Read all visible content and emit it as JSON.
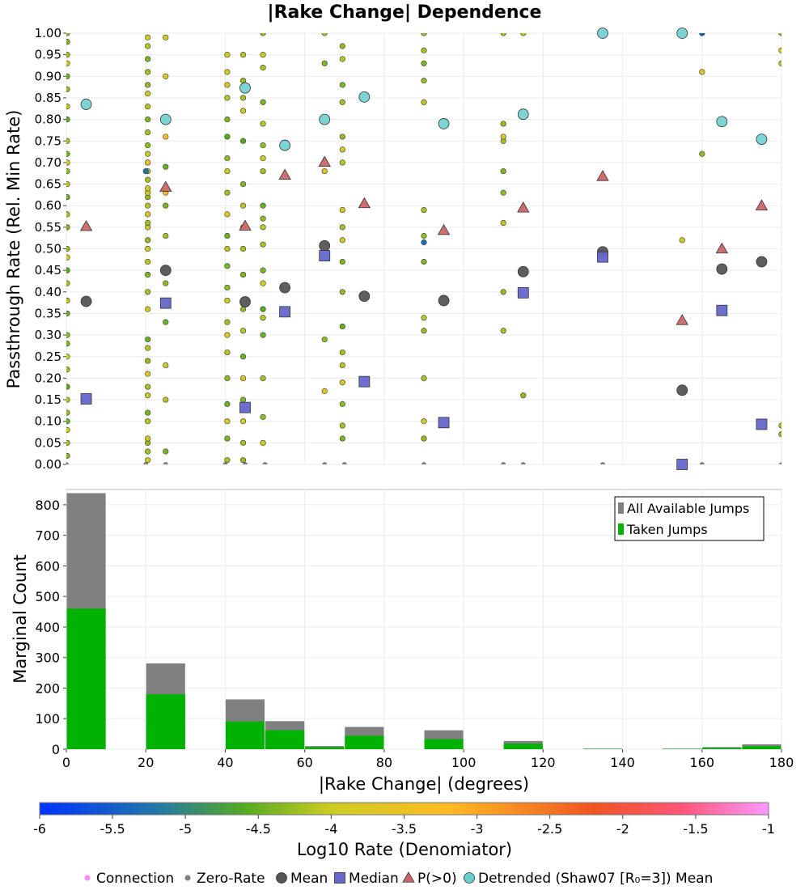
{
  "chart_data": [
    {
      "type": "scatter",
      "title": "|Rake Change| Dependence",
      "ylabel": "Passthrough Rate (Rel. Min Rate)",
      "xlim": [
        0,
        180
      ],
      "ylim": [
        0,
        1
      ],
      "yticks": [
        "0.00",
        "0.05",
        "0.10",
        "0.15",
        "0.20",
        "0.25",
        "0.30",
        "0.35",
        "0.40",
        "0.45",
        "0.50",
        "0.55",
        "0.60",
        "0.65",
        "0.70",
        "0.75",
        "0.80",
        "0.85",
        "0.90",
        "0.95",
        "1.00"
      ],
      "grid": true,
      "series": [
        {
          "name": "Mean",
          "color": "#555555",
          "points": [
            [
              5,
              0.378
            ],
            [
              25,
              0.45
            ],
            [
              45,
              0.377
            ],
            [
              55,
              0.41
            ],
            [
              65,
              0.507
            ],
            [
              75,
              0.39
            ],
            [
              95,
              0.38
            ],
            [
              115,
              0.447
            ],
            [
              135,
              0.493
            ],
            [
              155,
              0.172
            ],
            [
              165,
              0.453
            ],
            [
              175,
              0.47
            ]
          ]
        },
        {
          "name": "Median",
          "color": "#6666cc",
          "points": [
            [
              5,
              0.152
            ],
            [
              25,
              0.374
            ],
            [
              45,
              0.132
            ],
            [
              55,
              0.354
            ],
            [
              65,
              0.484
            ],
            [
              75,
              0.192
            ],
            [
              95,
              0.097
            ],
            [
              115,
              0.398
            ],
            [
              135,
              0.481
            ],
            [
              155,
              0.0
            ],
            [
              165,
              0.357
            ],
            [
              175,
              0.093
            ]
          ]
        },
        {
          "name": "P(>0)",
          "color": "#cc6666",
          "points": [
            [
              5,
              0.552
            ],
            [
              25,
              0.643
            ],
            [
              45,
              0.553
            ],
            [
              55,
              0.671
            ],
            [
              65,
              0.701
            ],
            [
              75,
              0.605
            ],
            [
              95,
              0.543
            ],
            [
              115,
              0.595
            ],
            [
              135,
              0.668
            ],
            [
              155,
              0.334
            ],
            [
              165,
              0.5
            ],
            [
              175,
              0.6
            ]
          ]
        },
        {
          "name": "Detrended (Shaw07 [R₀=3]) Mean",
          "color": "#66cccc",
          "points": [
            [
              5,
              0.835
            ],
            [
              25,
              0.8
            ],
            [
              45,
              0.873
            ],
            [
              55,
              0.74
            ],
            [
              65,
              0.8
            ],
            [
              75,
              0.852
            ],
            [
              95,
              0.79
            ],
            [
              115,
              0.812
            ],
            [
              135,
              1.0
            ],
            [
              155,
              1.0
            ],
            [
              165,
              0.795
            ],
            [
              175,
              0.754
            ]
          ]
        }
      ],
      "connections": {
        "name": "Connection",
        "colorbar_field": "Log10 Rate (Denomiator)",
        "columns": [
          {
            "x": 0.2,
            "y": [
              0.02,
              0.05,
              0.08,
              0.1,
              0.12,
              0.15,
              0.18,
              0.22,
              0.25,
              0.28,
              0.3,
              0.35,
              0.38,
              0.42,
              0.45,
              0.48,
              0.5,
              0.55,
              0.58,
              0.62,
              0.65,
              0.68,
              0.7,
              0.72,
              0.75,
              0.8,
              0.83,
              0.87,
              0.9,
              0.93,
              0.95,
              0.98,
              1.0
            ],
            "log10_rate": [
              -4.4,
              -4.2,
              -4.0,
              -4.5,
              -4.3,
              -4.1,
              -4.6,
              -4.2,
              -4.0,
              -4.4,
              -4.3,
              -4.5,
              -4.1,
              -4.2,
              -4.6,
              -4.0,
              -4.3,
              -4.4,
              -4.2,
              -4.5,
              -4.1,
              -4.3,
              -4.0,
              -4.4,
              -4.2,
              -4.6,
              -4.1,
              -4.3,
              -4.5,
              -4.0,
              -4.2,
              -4.4,
              -4.3
            ]
          },
          {
            "x": 20.5,
            "y": [
              0.01,
              0.03,
              0.05,
              0.06,
              0.1,
              0.12,
              0.16,
              0.18,
              0.21,
              0.24,
              0.27,
              0.29,
              0.36,
              0.4,
              0.44,
              0.47,
              0.5,
              0.52,
              0.55,
              0.56,
              0.58,
              0.6,
              0.62,
              0.63,
              0.64,
              0.66,
              0.68,
              0.7,
              0.72,
              0.74,
              0.77,
              0.8,
              0.83,
              0.86,
              0.88,
              0.91,
              0.94,
              0.97,
              0.99
            ],
            "log10_rate": [
              -4.0,
              -4.2,
              -4.3,
              -3.9,
              -4.1,
              -4.4,
              -4.0,
              -4.2,
              -3.8,
              -4.3,
              -4.1,
              -4.5,
              -4.0,
              -4.2,
              -4.4,
              -4.1,
              -3.9,
              -4.3,
              -4.0,
              -4.2,
              -3.8,
              -4.1,
              -4.3,
              -4.0,
              -3.9,
              -4.2,
              -4.1,
              -3.6,
              -4.0,
              -4.3,
              -4.2,
              -4.4,
              -4.1,
              -4.0,
              -4.3,
              -4.2,
              -4.4,
              -4.1,
              -4.0
            ]
          },
          {
            "x": 20.0,
            "y": [
              0.68
            ],
            "log10_rate": [
              -5.2
            ]
          },
          {
            "x": 25.0,
            "y": [
              0.03,
              0.15,
              0.23,
              0.33,
              0.42,
              0.53,
              0.6,
              0.63,
              0.69,
              0.76,
              0.9,
              0.99
            ],
            "log10_rate": [
              -4.4,
              -4.1,
              -4.0,
              -4.5,
              -4.3,
              -4.2,
              -4.4,
              -3.3,
              -4.5,
              -3.2,
              -3.8,
              -3.9
            ]
          },
          {
            "x": 40.5,
            "y": [
              0.01,
              0.06,
              0.1,
              0.14,
              0.2,
              0.26,
              0.3,
              0.33,
              0.38,
              0.41,
              0.46,
              0.5,
              0.53,
              0.58,
              0.63,
              0.68,
              0.71,
              0.76,
              0.8,
              0.85,
              0.88,
              0.91,
              0.95
            ],
            "log10_rate": [
              -4.2,
              -4.4,
              -4.0,
              -4.5,
              -4.3,
              -4.1,
              -3.8,
              -4.2,
              -4.0,
              -4.3,
              -4.4,
              -4.1,
              -4.5,
              -3.7,
              -4.2,
              -4.0,
              -4.3,
              -4.6,
              -4.4,
              -4.1,
              -3.9,
              -4.0,
              -3.9
            ]
          },
          {
            "x": 44.5,
            "y": [
              0.01,
              0.05,
              0.1,
              0.15,
              0.2,
              0.25,
              0.31,
              0.36,
              0.44,
              0.5,
              0.55,
              0.6,
              0.65,
              0.75,
              0.82,
              0.85,
              0.89,
              0.95
            ],
            "log10_rate": [
              -4.3,
              -4.2,
              -4.0,
              -4.4,
              -3.8,
              -4.5,
              -4.1,
              -4.3,
              -4.4,
              -4.2,
              -4.0,
              -4.1,
              -4.4,
              -4.6,
              -4.0,
              -4.2,
              -4.3,
              -4.1
            ]
          },
          {
            "x": 49.5,
            "y": [
              0.05,
              0.11,
              0.2,
              0.3,
              0.34,
              0.36,
              0.42,
              0.45,
              0.51,
              0.55,
              0.57,
              0.6,
              0.68,
              0.71,
              0.74,
              0.79,
              0.84,
              0.92,
              0.95,
              1.0
            ],
            "log10_rate": [
              -4.0,
              -4.3,
              -4.2,
              -4.5,
              -4.1,
              -4.6,
              -4.0,
              -4.4,
              -4.2,
              -4.1,
              -4.3,
              -4.5,
              -4.2,
              -4.0,
              -4.3,
              -4.1,
              -4.4,
              -4.2,
              -4.0,
              -4.3
            ]
          },
          {
            "x": 65.0,
            "y": [
              0.17,
              0.29,
              0.68,
              0.93,
              1.0
            ],
            "log10_rate": [
              -3.7,
              -4.3,
              -3.7,
              -4.4,
              -4.2
            ]
          },
          {
            "x": 69.5,
            "y": [
              0.06,
              0.09,
              0.14,
              0.19,
              0.23,
              0.26,
              0.32,
              0.4,
              0.47,
              0.52,
              0.55,
              0.59,
              0.7,
              0.73,
              0.76,
              0.84,
              0.88,
              0.94,
              0.97
            ],
            "log10_rate": [
              -4.4,
              -4.2,
              -4.3,
              -4.0,
              -4.1,
              -4.2,
              -4.5,
              -4.3,
              -4.4,
              -4.0,
              -4.2,
              -3.8,
              -4.1,
              -4.0,
              -4.3,
              -4.2,
              -4.4,
              -4.1,
              -4.3
            ]
          },
          {
            "x": 90.0,
            "y": [
              0.06,
              0.1,
              0.2,
              0.31,
              0.34,
              0.47,
              0.53,
              0.59,
              0.84,
              0.89,
              0.93,
              0.96,
              1.0
            ],
            "log10_rate": [
              -4.3,
              -4.0,
              -4.2,
              -4.3,
              -4.1,
              -4.4,
              -4.3,
              -4.2,
              -4.1,
              -4.3,
              -4.4,
              -4.2,
              -4.3
            ]
          },
          {
            "x": 90.0,
            "y": [
              0.515
            ],
            "log10_rate": [
              -5.3
            ]
          },
          {
            "x": 110.0,
            "y": [
              0.31,
              0.4,
              0.56,
              0.63,
              0.68,
              0.75,
              0.76,
              0.79,
              1.0
            ],
            "log10_rate": [
              -4.2,
              -4.3,
              -4.1,
              -4.3,
              -4.4,
              -4.2,
              -3.9,
              -4.3,
              -4.2
            ]
          },
          {
            "x": 115.0,
            "y": [
              0.16,
              1.0
            ],
            "log10_rate": [
              -4.3,
              -4.1
            ]
          },
          {
            "x": 155.0,
            "y": [
              0.52
            ],
            "log10_rate": [
              -4.0
            ]
          },
          {
            "x": 160.0,
            "y": [
              0.72,
              0.91,
              1.0
            ],
            "log10_rate": [
              -4.3,
              -3.8,
              -5.5
            ]
          },
          {
            "x": 180.0,
            "y": [
              0.07,
              0.09,
              0.93,
              0.96,
              1.0
            ],
            "log10_rate": [
              -4.3,
              -4.2,
              -4.1,
              -4.0,
              -4.3
            ]
          }
        ]
      },
      "zero_rate": {
        "name": "Zero-Rate",
        "color": "#808080",
        "x": [
          0,
          20,
          25,
          40,
          45,
          50,
          65,
          70,
          90,
          110,
          115,
          135,
          160,
          180
        ]
      }
    },
    {
      "type": "bar",
      "xlabel": "|Rake Change| (degrees)",
      "ylabel": "Marginal Count",
      "xlim": [
        0,
        180
      ],
      "ylim": [
        0,
        850
      ],
      "xticks": [
        "0",
        "20",
        "40",
        "60",
        "80",
        "100",
        "120",
        "140",
        "160",
        "180"
      ],
      "yticks": [
        "0",
        "100",
        "200",
        "300",
        "400",
        "500",
        "600",
        "700",
        "800"
      ],
      "legend_position": "top-right",
      "bin_edges": [
        [
          0,
          10
        ],
        [
          20,
          30
        ],
        [
          40,
          50
        ],
        [
          50,
          60
        ],
        [
          60,
          70
        ],
        [
          70,
          80
        ],
        [
          90,
          100
        ],
        [
          110,
          120
        ],
        [
          130,
          140
        ],
        [
          150,
          160
        ],
        [
          160,
          170
        ],
        [
          170,
          180
        ]
      ],
      "series": [
        {
          "name": "All Available Jumps",
          "color": "#808080",
          "values": [
            838,
            281,
            163,
            92,
            10,
            73,
            62,
            27,
            2,
            2,
            7,
            16
          ]
        },
        {
          "name": "Taken Jumps",
          "color": "#00b200",
          "values": [
            460,
            180,
            91,
            62,
            7,
            44,
            33,
            18,
            1,
            1,
            4,
            10
          ]
        }
      ]
    }
  ],
  "colorbar": {
    "label": "Log10 Rate (Denomiator)",
    "min": -6,
    "max": -1,
    "ticks": [
      "-6",
      "-5.5",
      "-5",
      "-4.5",
      "-4",
      "-3.5",
      "-3",
      "-2.5",
      "-2",
      "-1.5",
      "-1"
    ],
    "stops": [
      {
        "value": -6.0,
        "color": "#0033ff"
      },
      {
        "value": -5.2,
        "color": "#2277aa"
      },
      {
        "value": -4.6,
        "color": "#55aa22"
      },
      {
        "value": -4.0,
        "color": "#cccc22"
      },
      {
        "value": -3.2,
        "color": "#ffbb22"
      },
      {
        "value": -2.2,
        "color": "#ee5522"
      },
      {
        "value": -1.6,
        "color": "#ff5577"
      },
      {
        "value": -1.0,
        "color": "#ff99ff"
      }
    ]
  },
  "legend": [
    {
      "label": "Connection",
      "marker": "dot",
      "color": "#ff88ff"
    },
    {
      "label": "Zero-Rate",
      "marker": "dot",
      "color": "#808080"
    },
    {
      "label": "Mean",
      "marker": "circle",
      "color": "#555555"
    },
    {
      "label": "Median",
      "marker": "square",
      "color": "#6666cc"
    },
    {
      "label": "P(>0)",
      "marker": "triangle",
      "color": "#cc6666"
    },
    {
      "label": "Detrended (Shaw07 [R₀=3]) Mean",
      "marker": "circle",
      "color": "#66cccc"
    }
  ]
}
